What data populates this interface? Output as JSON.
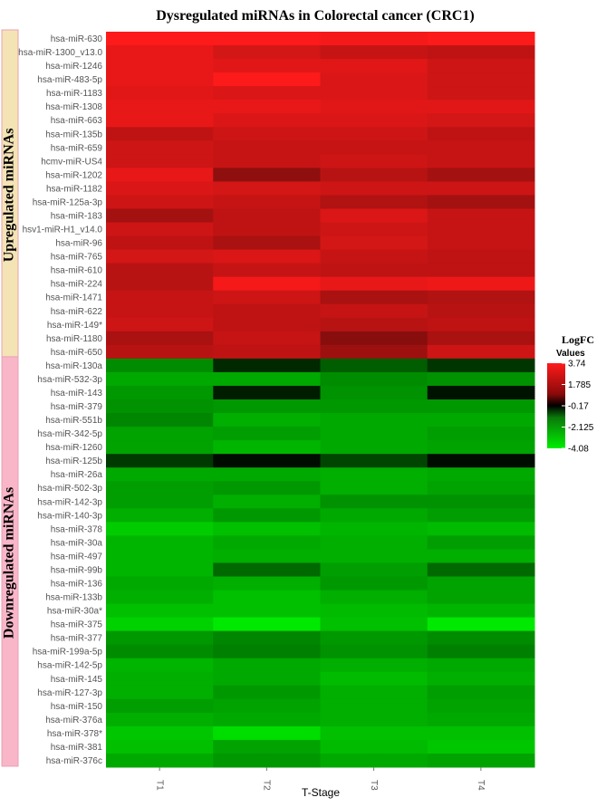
{
  "chart_data": {
    "type": "heatmap",
    "title": "Dysregulated miRNAs in Colorectal cancer (CRC1)",
    "xlabel": "T-Stage",
    "columns": [
      "T1",
      "T2",
      "T3",
      "T4"
    ],
    "groups": [
      {
        "label": "Upregulated miRNAs",
        "color": "#f3e3b5",
        "row_count": 24
      },
      {
        "label": "Downregulated miRNAs",
        "color": "#f8b6c8",
        "row_count": 30
      }
    ],
    "legend": {
      "title": "LogFC",
      "subtitle": "Values",
      "ticks": [
        "3.74",
        "1.785",
        "-0.17",
        "-2.125",
        "-4.08"
      ],
      "range": [
        -4.08,
        3.74
      ],
      "colors": {
        "high": "#ff1a1a",
        "mid": "#000000",
        "low": "#00ee00"
      }
    },
    "rows": [
      {
        "name": "hsa-miR-630",
        "values": [
          3.7,
          3.7,
          3.6,
          3.7
        ]
      },
      {
        "name": "hsa-miR-1300_v13.0",
        "values": [
          3.4,
          3.1,
          2.9,
          2.8
        ]
      },
      {
        "name": "hsa-miR-1246",
        "values": [
          3.4,
          3.3,
          3.3,
          3.0
        ]
      },
      {
        "name": "hsa-miR-483-5p",
        "values": [
          3.4,
          3.7,
          3.2,
          3.0
        ]
      },
      {
        "name": "hsa-miR-1183",
        "values": [
          3.3,
          3.2,
          3.2,
          3.0
        ]
      },
      {
        "name": "hsa-miR-1308",
        "values": [
          3.4,
          3.4,
          3.3,
          3.3
        ]
      },
      {
        "name": "hsa-miR-663",
        "values": [
          3.4,
          3.2,
          3.2,
          3.1
        ]
      },
      {
        "name": "hsa-miR-135b",
        "values": [
          2.8,
          3.0,
          3.0,
          2.8
        ]
      },
      {
        "name": "hsa-miR-659",
        "values": [
          3.0,
          2.9,
          2.9,
          2.9
        ]
      },
      {
        "name": "hcmv-miR-US4",
        "values": [
          3.0,
          2.9,
          3.0,
          2.9
        ]
      },
      {
        "name": "hsa-miR-1202",
        "values": [
          3.4,
          2.1,
          2.7,
          2.4
        ]
      },
      {
        "name": "hsa-miR-1182",
        "values": [
          3.2,
          3.1,
          3.0,
          3.0
        ]
      },
      {
        "name": "hsa-miR-125a-3p",
        "values": [
          3.0,
          2.9,
          2.6,
          2.4
        ]
      },
      {
        "name": "hsa-miR-183",
        "values": [
          2.4,
          2.8,
          3.2,
          2.9
        ]
      },
      {
        "name": "hsv1-miR-H1_v14.0",
        "values": [
          3.0,
          2.8,
          3.0,
          2.9
        ]
      },
      {
        "name": "hsa-miR-96",
        "values": [
          2.8,
          2.5,
          3.1,
          2.9
        ]
      },
      {
        "name": "hsa-miR-765",
        "values": [
          3.1,
          3.2,
          2.9,
          2.8
        ]
      },
      {
        "name": "hsa-miR-610",
        "values": [
          2.7,
          2.9,
          2.8,
          2.8
        ]
      },
      {
        "name": "hsa-miR-224",
        "values": [
          2.7,
          3.6,
          3.4,
          3.5
        ]
      },
      {
        "name": "hsa-miR-1471",
        "values": [
          2.9,
          3.0,
          2.5,
          2.6
        ]
      },
      {
        "name": "hsa-miR-622",
        "values": [
          2.9,
          2.8,
          2.9,
          2.7
        ]
      },
      {
        "name": "hsa-miR-149*",
        "values": [
          3.0,
          2.8,
          2.7,
          2.8
        ]
      },
      {
        "name": "hsa-miR-1180",
        "values": [
          2.5,
          2.9,
          2.0,
          2.5
        ]
      },
      {
        "name": "hsa-miR-650",
        "values": [
          2.7,
          2.8,
          2.3,
          3.0
        ]
      },
      {
        "name": "hsa-miR-130a",
        "values": [
          -2.4,
          -0.7,
          -1.6,
          -0.9
        ]
      },
      {
        "name": "hsa-miR-532-3p",
        "values": [
          -2.9,
          -2.9,
          -2.4,
          -2.5
        ]
      },
      {
        "name": "hsa-miR-143",
        "values": [
          -2.6,
          -0.5,
          -2.5,
          -0.3
        ]
      },
      {
        "name": "hsa-miR-379",
        "values": [
          -2.5,
          -2.6,
          -2.6,
          -2.6
        ]
      },
      {
        "name": "hsa-miR-551b",
        "values": [
          -2.3,
          -3.0,
          -2.9,
          -2.9
        ]
      },
      {
        "name": "hsa-miR-342-5p",
        "values": [
          -2.8,
          -2.7,
          -2.9,
          -2.7
        ]
      },
      {
        "name": "hsa-miR-1260",
        "values": [
          -2.8,
          -3.1,
          -2.9,
          -2.8
        ]
      },
      {
        "name": "hsa-miR-125b",
        "values": [
          -1.0,
          -0.2,
          -1.2,
          -0.2
        ]
      },
      {
        "name": "hsa-miR-26a",
        "values": [
          -2.9,
          -2.9,
          -3.0,
          -2.9
        ]
      },
      {
        "name": "hsa-miR-502-3p",
        "values": [
          -2.7,
          -2.6,
          -3.0,
          -2.8
        ]
      },
      {
        "name": "hsa-miR-142-3p",
        "values": [
          -2.7,
          -3.0,
          -2.5,
          -2.5
        ]
      },
      {
        "name": "hsa-miR-140-3p",
        "values": [
          -3.0,
          -2.6,
          -2.9,
          -2.7
        ]
      },
      {
        "name": "hsa-miR-378",
        "values": [
          -3.5,
          -3.3,
          -3.1,
          -3.2
        ]
      },
      {
        "name": "hsa-miR-30a",
        "values": [
          -3.1,
          -2.9,
          -3.0,
          -2.7
        ]
      },
      {
        "name": "hsa-miR-497",
        "values": [
          -3.1,
          -3.0,
          -3.0,
          -3.0
        ]
      },
      {
        "name": "hsa-miR-99b",
        "values": [
          -3.1,
          -1.8,
          -2.7,
          -1.8
        ]
      },
      {
        "name": "hsa-miR-136",
        "values": [
          -2.9,
          -3.0,
          -2.6,
          -2.8
        ]
      },
      {
        "name": "hsa-miR-133b",
        "values": [
          -3.0,
          -3.3,
          -3.0,
          -2.8
        ]
      },
      {
        "name": "hsa-miR-30a*",
        "values": [
          -3.3,
          -3.3,
          -3.2,
          -3.1
        ]
      },
      {
        "name": "hsa-miR-375",
        "values": [
          -3.6,
          -4.0,
          -3.3,
          -4.0
        ]
      },
      {
        "name": "hsa-miR-377",
        "values": [
          -2.6,
          -2.3,
          -2.6,
          -2.4
        ]
      },
      {
        "name": "hsa-miR-199a-5p",
        "values": [
          -2.4,
          -2.2,
          -2.5,
          -2.2
        ]
      },
      {
        "name": "hsa-miR-142-5p",
        "values": [
          -3.1,
          -2.9,
          -3.0,
          -2.9
        ]
      },
      {
        "name": "hsa-miR-145",
        "values": [
          -3.0,
          -2.9,
          -3.2,
          -3.0
        ]
      },
      {
        "name": "hsa-miR-127-3p",
        "values": [
          -3.0,
          -2.6,
          -3.0,
          -2.7
        ]
      },
      {
        "name": "hsa-miR-150",
        "values": [
          -2.7,
          -2.8,
          -3.0,
          -2.8
        ]
      },
      {
        "name": "hsa-miR-376a",
        "values": [
          -3.0,
          -2.9,
          -3.0,
          -2.9
        ]
      },
      {
        "name": "hsa-miR-378*",
        "values": [
          -3.4,
          -3.8,
          -3.3,
          -3.3
        ]
      },
      {
        "name": "hsa-miR-381",
        "values": [
          -3.3,
          -2.8,
          -3.2,
          -3.4
        ]
      },
      {
        "name": "hsa-miR-376c",
        "values": [
          -2.9,
          -2.6,
          -2.9,
          -2.8
        ]
      }
    ]
  }
}
